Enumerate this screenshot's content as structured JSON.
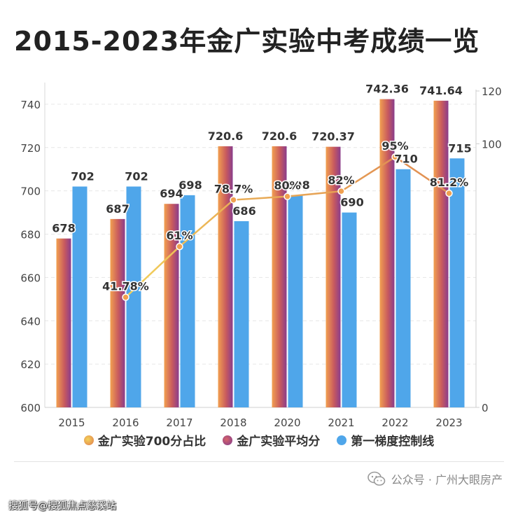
{
  "title": "2015-2023年金广实验中考成绩一览",
  "chart_data": {
    "type": "bar",
    "categories": [
      "2015",
      "2016",
      "2017",
      "2018",
      "2020",
      "2021",
      "2022",
      "2023"
    ],
    "series": [
      {
        "name": "金广实验平均分",
        "kind": "bar",
        "axis": "left",
        "values": [
          678,
          687,
          694,
          720.6,
          720.6,
          720.37,
          742.36,
          741.64
        ],
        "labels": [
          "678",
          "687",
          "694",
          "720.6",
          "720.6",
          "720.37",
          "742.36",
          "741.64"
        ]
      },
      {
        "name": "第一梯度控制线",
        "kind": "bar",
        "axis": "left",
        "values": [
          702,
          702,
          698,
          686,
          698,
          690,
          710,
          715
        ],
        "labels": [
          "702",
          "702",
          "698",
          "686",
          "698",
          "690",
          "710",
          "715"
        ]
      },
      {
        "name": "金广实验700分占比",
        "kind": "line",
        "axis": "right",
        "values": [
          null,
          41.78,
          61,
          78.7,
          80,
          82,
          95,
          81.2
        ],
        "labels": [
          "",
          "41.78%",
          "61%",
          "78.7%",
          "80%",
          "82%",
          "95%",
          "81.2%"
        ]
      }
    ],
    "y_left": {
      "min": 600,
      "max": 750,
      "ticks": [
        600,
        620,
        640,
        660,
        680,
        700,
        720,
        740
      ]
    },
    "y_right": {
      "min": 0,
      "max": 120,
      "ticks": [
        0,
        100,
        120
      ]
    },
    "grid": true,
    "legend_position": "bottom"
  },
  "legend": [
    {
      "label": "金广实验700分占比",
      "color": "#f0a64e"
    },
    {
      "label": "金广实验平均分",
      "color": "#a8507a"
    },
    {
      "label": "第一梯度控制线",
      "color": "#4fa6ea"
    }
  ],
  "footer": {
    "account": "公众号 · 广州大眼房产",
    "watermark": "搜狐号@搜狐焦点慈溪站"
  }
}
